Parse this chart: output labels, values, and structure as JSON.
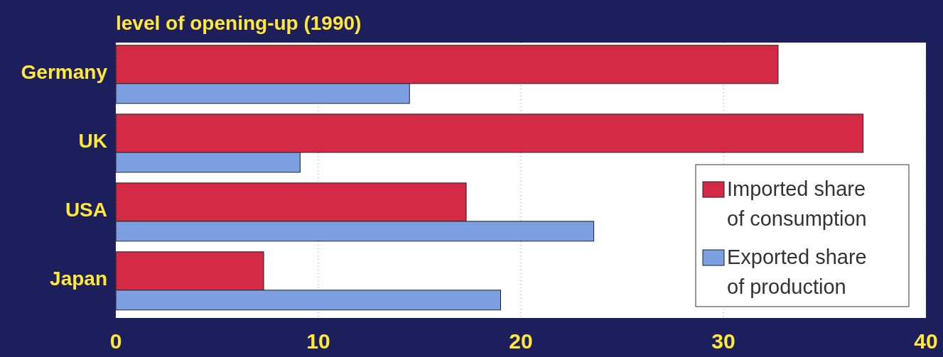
{
  "chart_data": {
    "type": "bar",
    "orientation": "horizontal",
    "title": "level of opening-up (1990)",
    "categories": [
      "Germany",
      "UK",
      "USA",
      "Japan"
    ],
    "series": [
      {
        "name": "Imported share of consumption",
        "color": "#d42a45",
        "values": [
          32.7,
          36.9,
          17.3,
          7.3
        ]
      },
      {
        "name": "Exported share of production",
        "color": "#7b9fe0",
        "values": [
          14.5,
          9.1,
          23.6,
          19.0
        ]
      }
    ],
    "xlim": [
      0,
      40
    ],
    "xticks": [
      0,
      10,
      20,
      30,
      40
    ],
    "grid": "x",
    "legend": "bottom right"
  }
}
